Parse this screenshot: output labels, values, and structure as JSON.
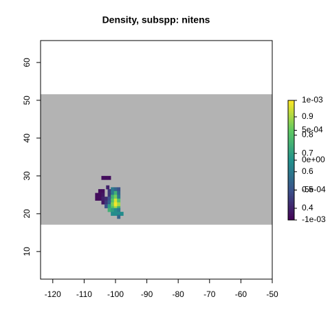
{
  "chart_data": {
    "type": "raster-map",
    "title": "Density, subspp: nitens",
    "xlim": [
      -123.9,
      -50
    ],
    "ylim": [
      2.7,
      65.8
    ],
    "xticks": [
      -120,
      -110,
      -100,
      -90,
      -80,
      -70,
      -60,
      -50
    ],
    "yticks": [
      10,
      20,
      30,
      40,
      50,
      60
    ],
    "mask": {
      "lat": [
        17.1,
        51.6
      ],
      "color": "#b3b3b3"
    },
    "cells": {
      "lon": [
        -104,
        -103,
        -102,
        -102.5,
        -101,
        -100,
        -99,
        -105,
        -104,
        -102,
        -101,
        -100,
        -99,
        -106,
        -105,
        -104,
        -102,
        -101,
        -100,
        -99,
        -106,
        -105,
        -104,
        -103,
        -102,
        -101,
        -100,
        -99,
        -104,
        -103,
        -102,
        -101,
        -100,
        -99,
        -103,
        -102,
        -101,
        -100,
        -99,
        -102,
        -101,
        -100,
        -99,
        -101,
        -100,
        -99,
        -98,
        -99
      ],
      "lat": [
        29.5,
        29.5,
        29.5,
        27,
        26.5,
        26.5,
        26.5,
        26,
        26,
        26,
        25.5,
        25.5,
        25.5,
        25,
        25,
        25,
        25,
        24.5,
        24.5,
        24.5,
        24,
        24,
        24,
        24,
        24,
        23.5,
        23.5,
        23.5,
        23,
        23,
        23,
        22.5,
        22.5,
        22.5,
        22,
        22,
        21.5,
        21.5,
        21.5,
        21,
        21,
        21,
        21,
        20,
        20,
        20,
        20,
        19.2
      ],
      "values": [
        0.36,
        0.36,
        0.36,
        0.4,
        0.6,
        0.55,
        0.5,
        0.36,
        0.36,
        0.45,
        0.6,
        0.75,
        0.55,
        0.36,
        0.36,
        0.38,
        0.45,
        0.75,
        0.85,
        0.6,
        0.36,
        0.36,
        0.4,
        0.42,
        0.5,
        0.8,
        0.95,
        0.8,
        0.38,
        0.45,
        0.55,
        0.85,
        0.98,
        0.9,
        0.5,
        0.7,
        0.8,
        0.9,
        0.75,
        0.75,
        0.7,
        0.65,
        0.6,
        0.65,
        0.65,
        0.65,
        0.65,
        0.55
      ]
    },
    "zlim": [
      0.336,
      0.99
    ],
    "zticks": [
      0.4,
      0.5,
      0.6,
      0.7,
      0.8,
      0.9
    ],
    "z2lim": [
      -0.001,
      0.001
    ],
    "z2ticks": [
      {
        "value": -0.001,
        "label": "-1e-03"
      },
      {
        "value": -0.0005,
        "label": "-5e-04"
      },
      {
        "value": 0,
        "label": "0e+00"
      },
      {
        "value": 0.0005,
        "label": "5e-04"
      },
      {
        "value": 0.001,
        "label": "1e-03"
      }
    ],
    "colormap": [
      "#440154",
      "#3b528b",
      "#21918c",
      "#5ec962",
      "#fde725"
    ]
  }
}
